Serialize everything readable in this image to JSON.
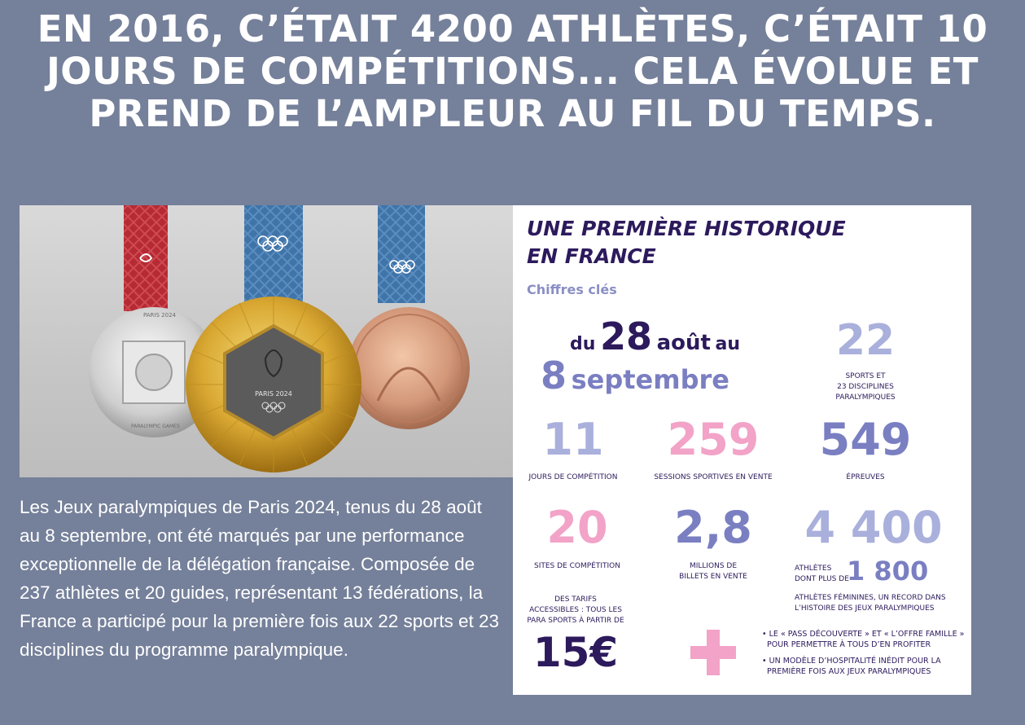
{
  "headline": "EN 2016, C’ÉTAIT 4200 ATHLÈTES, C’ÉTAIT 10 JOURS DE COMPÉTITIONS... CELA ÉVOLUE ET PREND DE L’AMPLEUR AU FIL DU TEMPS.",
  "photo": {
    "silver_medal_top": "PARIS 2024",
    "silver_medal_bottom": "PARALYMPIC GAMES",
    "gold_medal_label": "PARIS 2024"
  },
  "body_text": "Les Jeux paralympiques de Paris 2024, tenus du 28 août au 8 septembre, ont été marqués par une performance exceptionnelle de la délégation française. Composée de 237 athlètes et 20 guides, représentant 13 fédérations, la France a participé pour la première fois aux 22 sports et 23 disciplines du programme paralympique.",
  "info": {
    "title_line1": "UNE PREMIÈRE HISTORIQUE",
    "title_line2": "EN FRANCE",
    "subtitle": "Chiffres clés",
    "dates": {
      "du": "du",
      "day1": "28",
      "month1": "août",
      "au": "au",
      "day2": "8",
      "month2": "septembre"
    },
    "sports": {
      "value": "22",
      "caption_line1": "SPORTS ET",
      "caption_line2": "23 DISCIPLINES",
      "caption_line3": "PARALYMPIQUES"
    },
    "days": {
      "value": "11",
      "caption": "JOURS DE COMPÉTITION"
    },
    "sessions": {
      "value": "259",
      "caption": "SESSIONS SPORTIVES EN VENTE"
    },
    "events": {
      "value": "549",
      "caption": "ÉPREUVES"
    },
    "sites": {
      "value": "20",
      "caption": "SITES DE COMPÉTITION"
    },
    "tickets": {
      "value": "2,8",
      "caption_line1": "MILLIONS DE",
      "caption_line2": "BILLETS EN VENTE"
    },
    "athletes": {
      "value": "4 400",
      "label_line1": "ATHLÈTES",
      "label_line2": "DONT PLUS DE",
      "female_value": "1 800",
      "caption_line1": "ATHLÈTES FÉMININES, UN RECORD DANS",
      "caption_line2": "L’HISTOIRE DES JEUX PARALYMPIQUES"
    },
    "prices": {
      "caption_line1": "DES TARIFS",
      "caption_line2": "ACCESSIBLES : TOUS LES",
      "caption_line3": "PARA SPORTS À PARTIR DE",
      "value": "15€"
    },
    "plus_items": [
      {
        "line1": "• LE « PASS DÉCOUVERTE » ET « L’OFFRE FAMILLE »",
        "line2": "POUR PERMETTRE À TOUS D’EN PROFITER"
      },
      {
        "line1": "• UN MODÈLE D’HOSPITALITÉ INÉDIT POUR LA",
        "line2": "PREMIÈRE FOIS AUX JEUX PARALYMPIQUES"
      }
    ],
    "colors": {
      "dark": "#2c1a5c",
      "medium": "#7a7fc2",
      "light": "#aab0dc",
      "pink": "#f2a3c7"
    }
  }
}
